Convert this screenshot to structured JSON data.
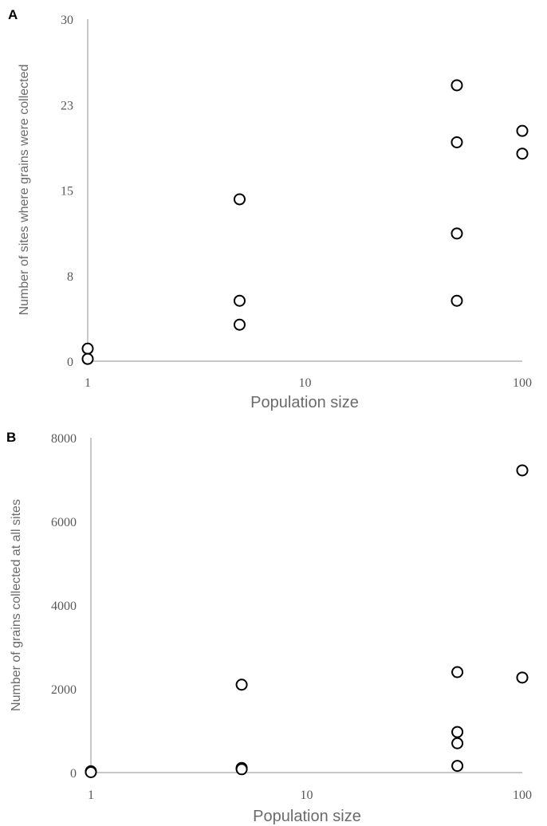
{
  "colors": {
    "axis": "#c8c8c8",
    "tick_text": "#595959",
    "axis_title": "#6b6b6b",
    "marker_stroke": "#000000",
    "marker_fill": "#ffffff"
  },
  "chart_data": [
    {
      "panel_label": "A",
      "type": "scatter",
      "xlabel": "Population size",
      "ylabel": "Number of sites where grains were collected",
      "x_scale": "log",
      "x_ticks": [
        1,
        10,
        100
      ],
      "x_tick_labels": [
        "1",
        "10",
        "100"
      ],
      "xlim": [
        1,
        100
      ],
      "y_ticks": [
        0,
        7.5,
        15,
        22.5,
        30
      ],
      "y_tick_labels": [
        "0",
        "8",
        "15",
        "23",
        "30"
      ],
      "ylim": [
        0,
        30
      ],
      "grid": false,
      "marker": "open-circle",
      "points": [
        {
          "x": 1,
          "y": 1.1
        },
        {
          "x": 1,
          "y": 0.2
        },
        {
          "x": 5,
          "y": 14.2
        },
        {
          "x": 5,
          "y": 5.3
        },
        {
          "x": 5,
          "y": 3.2
        },
        {
          "x": 50,
          "y": 24.2
        },
        {
          "x": 50,
          "y": 19.2
        },
        {
          "x": 50,
          "y": 11.2
        },
        {
          "x": 50,
          "y": 5.3
        },
        {
          "x": 100,
          "y": 20.2
        },
        {
          "x": 100,
          "y": 18.2
        }
      ]
    },
    {
      "panel_label": "B",
      "type": "scatter",
      "xlabel": "Population size",
      "ylabel": "Number of grains collected at all sites",
      "x_scale": "log",
      "x_ticks": [
        1,
        10,
        100
      ],
      "x_tick_labels": [
        "1",
        "10",
        "100"
      ],
      "xlim": [
        1,
        100
      ],
      "y_ticks": [
        0,
        2000,
        4000,
        6000,
        8000
      ],
      "y_tick_labels": [
        "0",
        "2000",
        "4000",
        "6000",
        "8000"
      ],
      "ylim": [
        0,
        8000
      ],
      "grid": false,
      "marker": "open-circle",
      "points": [
        {
          "x": 1,
          "y": 30
        },
        {
          "x": 1,
          "y": 10
        },
        {
          "x": 5,
          "y": 2100
        },
        {
          "x": 5,
          "y": 110
        },
        {
          "x": 5,
          "y": 80
        },
        {
          "x": 50,
          "y": 2400
        },
        {
          "x": 50,
          "y": 970
        },
        {
          "x": 50,
          "y": 700
        },
        {
          "x": 50,
          "y": 160
        },
        {
          "x": 100,
          "y": 7220
        },
        {
          "x": 100,
          "y": 2270
        }
      ]
    }
  ]
}
